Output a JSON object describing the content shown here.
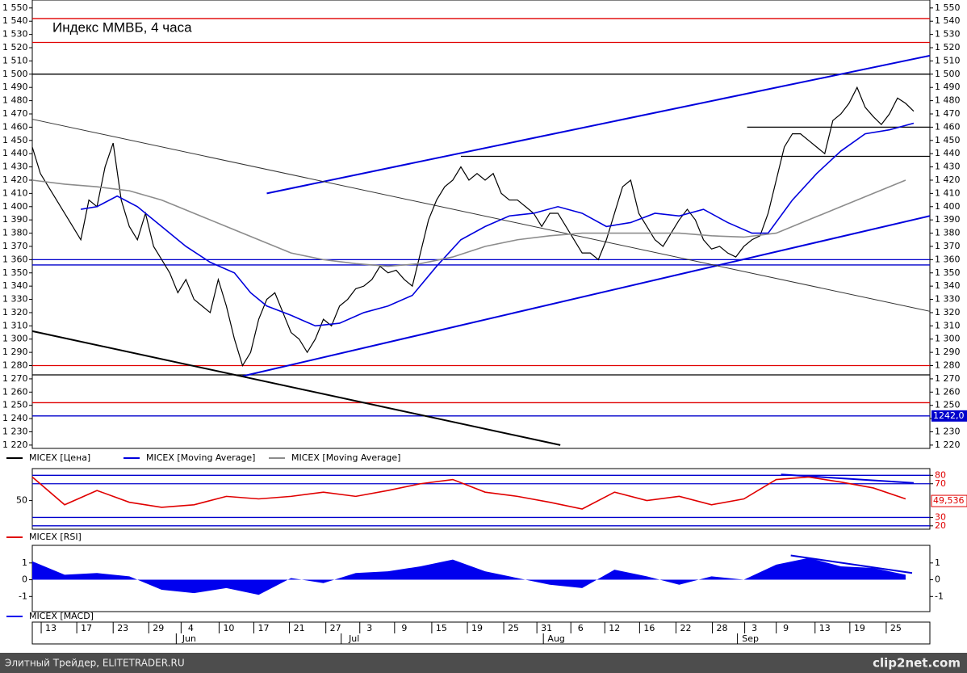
{
  "chart_data": [
    {
      "type": "line",
      "title": "Индекс ММВБ, 4 часа",
      "xlim": [
        0,
        111
      ],
      "ylim": [
        1217.5,
        1556
      ],
      "yticks": [
        {
          "value": 1550,
          "label": "1 550"
        },
        {
          "value": 1540,
          "label": "1 540"
        },
        {
          "value": 1530,
          "label": "1 530"
        },
        {
          "value": 1520,
          "label": "1 520"
        },
        {
          "value": 1510,
          "label": "1 510"
        },
        {
          "value": 1500,
          "label": "1 500"
        },
        {
          "value": 1490,
          "label": "1 490"
        },
        {
          "value": 1480,
          "label": "1 480"
        },
        {
          "value": 1470,
          "label": "1 470"
        },
        {
          "value": 1460,
          "label": "1 460"
        },
        {
          "value": 1450,
          "label": "1 450"
        },
        {
          "value": 1440,
          "label": "1 440"
        },
        {
          "value": 1430,
          "label": "1 430"
        },
        {
          "value": 1420,
          "label": "1 420"
        },
        {
          "value": 1410,
          "label": "1 410"
        },
        {
          "value": 1400,
          "label": "1 400"
        },
        {
          "value": 1390,
          "label": "1 390"
        },
        {
          "value": 1380,
          "label": "1 380"
        },
        {
          "value": 1370,
          "label": "1 370"
        },
        {
          "value": 1360,
          "label": "1 360"
        },
        {
          "value": 1350,
          "label": "1 350"
        },
        {
          "value": 1340,
          "label": "1 340"
        },
        {
          "value": 1330,
          "label": "1 330"
        },
        {
          "value": 1320,
          "label": "1 320"
        },
        {
          "value": 1310,
          "label": "1 310"
        },
        {
          "value": 1300,
          "label": "1 300"
        },
        {
          "value": 1290,
          "label": "1 290"
        },
        {
          "value": 1280,
          "label": "1 280"
        },
        {
          "value": 1270,
          "label": "1 270"
        },
        {
          "value": 1260,
          "label": "1 260"
        },
        {
          "value": 1250,
          "label": "1 250"
        },
        {
          "value": 1240,
          "label": "1 240"
        },
        {
          "value": 1230,
          "label": "1 230"
        },
        {
          "value": 1220,
          "label": "1 220"
        }
      ],
      "xticks": [
        {
          "value": 2.3,
          "label": "13"
        },
        {
          "value": 6.7,
          "label": "17"
        },
        {
          "value": 11.2,
          "label": "23"
        },
        {
          "value": 15.6,
          "label": "29"
        },
        {
          "value": 19.6,
          "label": "4"
        },
        {
          "value": 24.3,
          "label": "10"
        },
        {
          "value": 28.6,
          "label": "17"
        },
        {
          "value": 33,
          "label": "21"
        },
        {
          "value": 37.5,
          "label": "27"
        },
        {
          "value": 41.7,
          "label": "3"
        },
        {
          "value": 46,
          "label": "9"
        },
        {
          "value": 50.6,
          "label": "15"
        },
        {
          "value": 55,
          "label": "19"
        },
        {
          "value": 59.5,
          "label": "25"
        },
        {
          "value": 63.6,
          "label": "31"
        },
        {
          "value": 67.8,
          "label": "6"
        },
        {
          "value": 72,
          "label": "12"
        },
        {
          "value": 76.3,
          "label": "16"
        },
        {
          "value": 80.8,
          "label": "22"
        },
        {
          "value": 85.3,
          "label": "28"
        },
        {
          "value": 89.3,
          "label": "3"
        },
        {
          "value": 93.2,
          "label": "9"
        },
        {
          "value": 98,
          "label": "13"
        },
        {
          "value": 102.3,
          "label": "19"
        },
        {
          "value": 106.8,
          "label": "25"
        }
      ],
      "month_labels": [
        {
          "value": 19.4,
          "label": "Jun"
        },
        {
          "value": 39.8,
          "label": "Jul"
        },
        {
          "value": 64.8,
          "label": "Aug"
        },
        {
          "value": 88.8,
          "label": "Sep"
        }
      ],
      "series": [
        {
          "name": "MICEX [Цена]",
          "color": "#000000",
          "x": [
            0,
            1,
            2,
            3,
            4,
            5,
            6,
            7,
            8,
            9,
            10,
            11,
            12,
            13,
            14,
            15,
            16,
            17,
            18,
            19,
            20,
            21,
            22,
            23,
            24,
            25,
            26,
            27,
            28,
            29,
            30,
            31,
            32,
            33,
            34,
            35,
            36,
            37,
            38,
            39,
            40,
            41,
            42,
            43,
            44,
            45,
            46,
            47,
            48,
            49,
            50,
            51,
            52,
            53,
            54,
            55,
            56,
            57,
            58,
            59,
            60,
            61,
            62,
            63,
            64,
            65,
            66,
            67,
            68,
            69,
            70,
            71,
            72,
            73,
            74,
            75,
            76,
            77,
            78,
            79,
            80,
            81,
            82,
            83,
            84,
            85,
            86,
            87,
            88,
            89,
            90,
            91,
            92,
            93,
            94,
            95,
            96,
            97,
            98,
            99,
            100,
            101,
            102,
            103,
            104,
            105,
            106,
            107,
            108,
            109
          ],
          "values": [
            1445,
            1425,
            1415,
            1405,
            1395,
            1385,
            1375,
            1405,
            1400,
            1430,
            1448,
            1405,
            1385,
            1375,
            1395,
            1370,
            1360,
            1350,
            1335,
            1345,
            1330,
            1325,
            1320,
            1345,
            1325,
            1300,
            1280,
            1290,
            1315,
            1330,
            1335,
            1320,
            1305,
            1300,
            1290,
            1300,
            1315,
            1310,
            1325,
            1330,
            1338,
            1340,
            1345,
            1355,
            1350,
            1352,
            1345,
            1340,
            1365,
            1390,
            1405,
            1415,
            1420,
            1430,
            1420,
            1425,
            1420,
            1425,
            1410,
            1405,
            1405,
            1400,
            1395,
            1385,
            1395,
            1395,
            1385,
            1375,
            1365,
            1365,
            1360,
            1375,
            1395,
            1415,
            1420,
            1395,
            1385,
            1375,
            1370,
            1380,
            1390,
            1398,
            1390,
            1375,
            1368,
            1370,
            1365,
            1362,
            1370,
            1375,
            1378,
            1395,
            1420,
            1445,
            1455,
            1455,
            1450,
            1445,
            1440,
            1465,
            1470,
            1478,
            1490,
            1475,
            1468,
            1462,
            1470,
            1482,
            1478,
            1472
          ]
        },
        {
          "name": "MICEX [Moving Average]",
          "color": "#0000dd",
          "x": [
            6,
            8,
            10.5,
            13,
            16,
            19,
            22,
            25,
            27,
            29,
            32,
            35,
            38,
            41,
            44,
            47,
            50,
            53,
            56,
            59,
            62,
            65,
            68,
            71,
            74,
            77,
            80,
            83,
            86,
            89,
            91,
            94,
            97,
            100,
            103,
            106,
            109
          ],
          "values": [
            1398,
            1400,
            1408,
            1400,
            1385,
            1370,
            1358,
            1350,
            1335,
            1325,
            1318,
            1310,
            1312,
            1320,
            1325,
            1333,
            1355,
            1375,
            1385,
            1393,
            1395,
            1400,
            1395,
            1385,
            1388,
            1395,
            1393,
            1398,
            1388,
            1380,
            1380,
            1405,
            1425,
            1442,
            1455,
            1458,
            1463
          ]
        },
        {
          "name": "MICEX [Moving Average]",
          "color": "#8c8c8c",
          "x": [
            0,
            4,
            8,
            12,
            16,
            20,
            24,
            28,
            32,
            36,
            40,
            44,
            48,
            52,
            56,
            60,
            64,
            68,
            72,
            76,
            80,
            84,
            88,
            92,
            96,
            100,
            104,
            108
          ],
          "values": [
            1420,
            1417,
            1415,
            1412,
            1405,
            1395,
            1385,
            1375,
            1365,
            1360,
            1357,
            1355,
            1357,
            1362,
            1370,
            1375,
            1378,
            1380,
            1380,
            1380,
            1380,
            1378,
            1377,
            1380,
            1390,
            1400,
            1410,
            1420
          ]
        }
      ],
      "hlines": [
        {
          "y": 1542,
          "color": "#e00000"
        },
        {
          "y": 1524,
          "color": "#e00000"
        },
        {
          "y": 1500,
          "color": "#000000"
        },
        {
          "y": 1460,
          "color": "#000000",
          "x": [
            88.4,
            111
          ]
        },
        {
          "y": 1438,
          "color": "#000000",
          "x": [
            53,
            111
          ]
        },
        {
          "y": 1360,
          "color": "#0000cc"
        },
        {
          "y": 1356,
          "color": "#0000cc"
        },
        {
          "y": 1280,
          "color": "#e00000"
        },
        {
          "y": 1273,
          "color": "#000000"
        },
        {
          "y": 1252,
          "color": "#e00000"
        },
        {
          "y": 1242,
          "color": "#0000cc",
          "label": "1242,0"
        }
      ],
      "trendlines": [
        {
          "x": [
            29,
            111
          ],
          "y": [
            1410,
            1514
          ],
          "color": "#0000dd",
          "width": 2
        },
        {
          "x": [
            26,
            111
          ],
          "y": [
            1272,
            1393
          ],
          "color": "#0000dd",
          "width": 2
        },
        {
          "x": [
            0,
            111
          ],
          "y": [
            1466,
            1321
          ],
          "color": "#333333",
          "width": 1
        },
        {
          "x": [
            0,
            65.3
          ],
          "y": [
            1306,
            1220
          ],
          "color": "#000000",
          "width": 2
        }
      ]
    },
    {
      "type": "line",
      "xlim": [
        0,
        111
      ],
      "ylim": [
        16,
        88
      ],
      "yticks_left": [
        50
      ],
      "yticks_right": [
        80,
        70,
        30,
        20
      ],
      "right_color": "#e00000",
      "last_value": 49.536,
      "last_label": "49,536",
      "hlines": [
        {
          "y": 80,
          "color": "#0000cc"
        },
        {
          "y": 70,
          "color": "#0000cc"
        },
        {
          "y": 30,
          "color": "#0000cc"
        },
        {
          "y": 20,
          "color": "#0000cc"
        }
      ],
      "trendlines": [
        {
          "x": [
            92.6,
            109
          ],
          "y": [
            81,
            71
          ],
          "color": "#0000dd",
          "width": 2
        }
      ],
      "series": [
        {
          "name": "MICEX [RSI]",
          "color": "#e00000",
          "x": [
            0,
            4,
            8,
            12,
            16,
            20,
            24,
            28,
            32,
            36,
            40,
            44,
            48,
            52,
            56,
            60,
            64,
            68,
            72,
            76,
            80,
            84,
            88,
            92,
            96,
            100,
            104,
            108
          ],
          "values": [
            78,
            45,
            62,
            48,
            42,
            45,
            55,
            52,
            55,
            60,
            55,
            62,
            70,
            75,
            60,
            55,
            48,
            40,
            60,
            50,
            55,
            45,
            52,
            75,
            78,
            72,
            65,
            52
          ]
        }
      ]
    },
    {
      "type": "area",
      "xlim": [
        0,
        111
      ],
      "ylim": [
        -1.9,
        2.05
      ],
      "yticks": [
        1,
        0,
        -1
      ],
      "trendlines": [
        {
          "x": [
            93.8,
            108.8
          ],
          "y": [
            1.45,
            0.4
          ],
          "color": "#0000dd",
          "width": 2
        }
      ],
      "series": [
        {
          "name": "MICEX [MACD]",
          "color": "#0000ee",
          "x": [
            0,
            4,
            8,
            12,
            16,
            20,
            24,
            28,
            32,
            36,
            40,
            44,
            48,
            52,
            56,
            60,
            64,
            68,
            72,
            76,
            80,
            84,
            88,
            92,
            96,
            100,
            104,
            108
          ],
          "values": [
            1.1,
            0.3,
            0.4,
            0.2,
            -0.6,
            -0.8,
            -0.5,
            -0.9,
            0.1,
            -0.2,
            0.4,
            0.5,
            0.8,
            1.2,
            0.5,
            0.1,
            -0.3,
            -0.5,
            0.6,
            0.2,
            -0.3,
            0.2,
            0,
            0.9,
            1.3,
            0.8,
            0.7,
            0.3
          ]
        }
      ]
    }
  ],
  "footer": {
    "left": "Элитный Трейдер, ELITETRADER.RU",
    "right": "clip2net.com"
  }
}
